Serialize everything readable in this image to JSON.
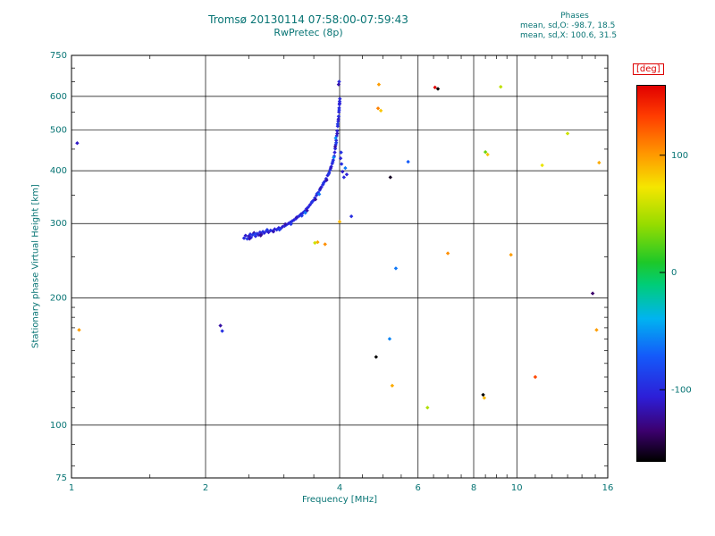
{
  "header": {
    "title": "Tromsø 20130114 07:58:00-07:59:43",
    "subtitle": "RwPretec (8p)",
    "phases": {
      "heading": "Phases",
      "line_o": "mean, sd,O: -98.7, 18.5",
      "line_x": "mean, sd,X: 100.6, 31.5"
    }
  },
  "colors": {
    "text": "#077474",
    "deg_label": "#dd0000",
    "grid": "#000000",
    "background": "#ffffff"
  },
  "chart_data": {
    "type": "scatter",
    "title": "Tromsø 20130114 07:58:00-07:59:43",
    "subtitle": "RwPretec (8p)",
    "xlabel": "Frequency [MHz]",
    "ylabel": "Stationary phase Virtual Height [km]",
    "xscale": "log",
    "yscale": "log",
    "xlim": [
      1,
      16
    ],
    "ylim": [
      75,
      750
    ],
    "x_ticks": [
      1,
      2,
      4,
      6,
      8,
      10,
      16
    ],
    "y_ticks": [
      75,
      100,
      200,
      300,
      400,
      500,
      600,
      750
    ],
    "grid": true,
    "colorbar": {
      "label": "[deg]",
      "ticks": [
        100,
        0,
        -100
      ],
      "range": [
        -160,
        160
      ],
      "position": "right"
    },
    "points_format": [
      "frequency_MHz",
      "virtual_height_km",
      "phase_deg"
    ],
    "points": [
      [
        2.44,
        277,
        -98
      ],
      [
        2.46,
        281,
        -108
      ],
      [
        2.48,
        276,
        -88
      ],
      [
        2.5,
        280,
        -112
      ],
      [
        2.52,
        283,
        -97
      ],
      [
        2.53,
        278,
        -103
      ],
      [
        2.55,
        282,
        -92
      ],
      [
        2.57,
        285,
        -118
      ],
      [
        2.59,
        280,
        -101
      ],
      [
        2.61,
        284,
        -95
      ],
      [
        2.63,
        282,
        -107
      ],
      [
        2.65,
        286,
        -99
      ],
      [
        2.67,
        283,
        -113
      ],
      [
        2.69,
        287,
        -94
      ],
      [
        2.71,
        285,
        -102
      ],
      [
        2.74,
        288,
        -97
      ],
      [
        2.77,
        286,
        -109
      ],
      [
        2.8,
        289,
        -100
      ],
      [
        2.83,
        288,
        -92
      ],
      [
        2.86,
        291,
        -105
      ],
      [
        2.89,
        290,
        -98
      ],
      [
        2.92,
        293,
        -103
      ],
      [
        2.95,
        292,
        -96
      ],
      [
        2.98,
        295,
        -110
      ],
      [
        3.01,
        296,
        -99
      ],
      [
        3.04,
        298,
        -93
      ],
      [
        3.07,
        300,
        -106
      ],
      [
        3.1,
        302,
        -100
      ],
      [
        3.13,
        304,
        -95
      ],
      [
        3.16,
        306,
        -104
      ],
      [
        3.19,
        308,
        -98
      ],
      [
        3.22,
        311,
        -102
      ],
      [
        3.25,
        313,
        -96
      ],
      [
        3.28,
        316,
        -108
      ],
      [
        3.31,
        318,
        -100
      ],
      [
        3.34,
        321,
        -94
      ],
      [
        3.37,
        325,
        -105
      ],
      [
        3.4,
        328,
        -99
      ],
      [
        3.43,
        332,
        -103
      ],
      [
        3.46,
        336,
        -97
      ],
      [
        3.49,
        340,
        -101
      ],
      [
        3.52,
        345,
        -95
      ],
      [
        3.55,
        350,
        -107
      ],
      [
        3.58,
        355,
        -100
      ],
      [
        3.61,
        360,
        -93
      ],
      [
        3.64,
        366,
        -104
      ],
      [
        3.67,
        371,
        -98
      ],
      [
        3.7,
        377,
        -102
      ],
      [
        3.73,
        383,
        -96
      ],
      [
        3.76,
        390,
        -106
      ],
      [
        3.79,
        396,
        -100
      ],
      [
        3.81,
        402,
        -94
      ],
      [
        3.83,
        409,
        -103
      ],
      [
        3.85,
        416,
        -99
      ],
      [
        3.87,
        424,
        -101
      ],
      [
        3.89,
        433,
        -97
      ],
      [
        3.9,
        442,
        -105
      ],
      [
        3.91,
        451,
        -100
      ],
      [
        3.92,
        461,
        -95
      ],
      [
        3.93,
        472,
        -102
      ],
      [
        3.94,
        484,
        -98
      ],
      [
        3.95,
        497,
        -104
      ],
      [
        3.96,
        510,
        -99
      ],
      [
        3.97,
        524,
        -101
      ],
      [
        3.98,
        538,
        -96
      ],
      [
        3.985,
        551,
        -103
      ],
      [
        3.99,
        563,
        -98
      ],
      [
        3.995,
        574,
        -102
      ],
      [
        4.0,
        584,
        -97
      ],
      [
        4.005,
        592,
        -100
      ],
      [
        2.51,
        276,
        -115
      ],
      [
        2.58,
        283,
        -85
      ],
      [
        2.66,
        281,
        -125
      ],
      [
        2.75,
        290,
        -90
      ],
      [
        2.84,
        287,
        -115
      ],
      [
        2.93,
        290,
        -88
      ],
      [
        3.02,
        299,
        -118
      ],
      [
        3.11,
        299,
        -91
      ],
      [
        3.2,
        310,
        -112
      ],
      [
        3.29,
        313,
        -89
      ],
      [
        3.38,
        322,
        -116
      ],
      [
        3.47,
        338,
        -92
      ],
      [
        3.53,
        342,
        -120
      ],
      [
        3.56,
        353,
        -86
      ],
      [
        3.62,
        363,
        -114
      ],
      [
        3.68,
        374,
        -91
      ],
      [
        3.74,
        380,
        -117
      ],
      [
        3.78,
        393,
        -89
      ],
      [
        3.82,
        406,
        -111
      ],
      [
        3.86,
        420,
        -93
      ],
      [
        3.88,
        430,
        -55
      ],
      [
        3.91,
        456,
        -119
      ],
      [
        3.93,
        466,
        -87
      ],
      [
        3.95,
        490,
        -113
      ],
      [
        3.96,
        516,
        -90
      ],
      [
        3.975,
        530,
        -108
      ],
      [
        3.99,
        557,
        -94
      ],
      [
        4.0,
        578,
        -106
      ],
      [
        3.35,
        318,
        -60
      ],
      [
        3.6,
        352,
        -58
      ],
      [
        3.92,
        478,
        -52
      ],
      [
        3.99,
        650,
        -100
      ],
      [
        3.98,
        640,
        -118
      ],
      [
        4.02,
        428,
        -102
      ],
      [
        4.04,
        415,
        -96
      ],
      [
        4.06,
        398,
        -108
      ],
      [
        4.09,
        386,
        -99
      ],
      [
        4.12,
        406,
        -60
      ],
      [
        4.03,
        442,
        -93
      ],
      [
        4.15,
        392,
        -104
      ],
      [
        4.25,
        312,
        -97
      ],
      [
        3.57,
        271,
        95
      ],
      [
        3.71,
        268,
        105
      ],
      [
        4.0,
        303,
        90
      ],
      [
        3.52,
        270,
        60
      ],
      [
        1.03,
        465,
        -110
      ],
      [
        1.04,
        168,
        100
      ],
      [
        2.16,
        172,
        -120
      ],
      [
        2.18,
        167,
        -95
      ],
      [
        4.9,
        640,
        100
      ],
      [
        4.88,
        562,
        110
      ],
      [
        4.95,
        555,
        85
      ],
      [
        6.55,
        630,
        165
      ],
      [
        6.65,
        625,
        -172
      ],
      [
        9.2,
        632,
        55
      ],
      [
        5.7,
        420,
        -70
      ],
      [
        5.2,
        386,
        -152
      ],
      [
        8.5,
        443,
        30
      ],
      [
        8.6,
        437,
        85
      ],
      [
        13.0,
        490,
        60
      ],
      [
        11.4,
        412,
        70
      ],
      [
        15.3,
        418,
        95
      ],
      [
        5.35,
        235,
        -60
      ],
      [
        9.7,
        253,
        100
      ],
      [
        7.0,
        255,
        105
      ],
      [
        14.8,
        205,
        -135
      ],
      [
        15.1,
        168,
        100
      ],
      [
        5.18,
        160,
        -55
      ],
      [
        4.83,
        145,
        -172
      ],
      [
        5.25,
        124,
        95
      ],
      [
        8.4,
        118,
        -160
      ],
      [
        8.45,
        116,
        90
      ],
      [
        6.3,
        110,
        50
      ],
      [
        11.0,
        130,
        130
      ]
    ]
  }
}
